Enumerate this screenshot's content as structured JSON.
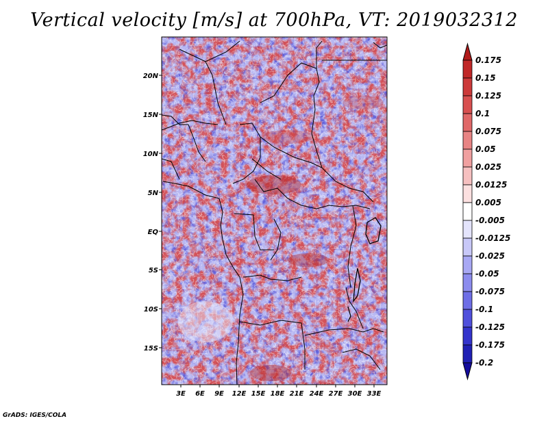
{
  "title": "Vertical velocity [m/s] at 700hPa, VT: 2019032312",
  "credit": "GrADS: IGES/COLA",
  "map": {
    "lat_labels": [
      "20N",
      "15N",
      "10N",
      "5N",
      "EQ",
      "5S",
      "10S",
      "15S"
    ],
    "lon_labels": [
      "3E",
      "6E",
      "9E",
      "12E",
      "15E",
      "18E",
      "21E",
      "24E",
      "27E",
      "30E",
      "33E"
    ]
  },
  "colorbar": {
    "labels": [
      "0.175",
      "0.15",
      "0.125",
      "0.1",
      "0.075",
      "0.05",
      "0.025",
      "0.0125",
      "0.005",
      "-0.005",
      "-0.0125",
      "-0.025",
      "-0.05",
      "-0.075",
      "-0.1",
      "-0.125",
      "-0.175",
      "-0.2"
    ],
    "colors": [
      "#b01a1a",
      "#c02828",
      "#cc3a3a",
      "#d85050",
      "#e06868",
      "#e88484",
      "#f0a0a0",
      "#f6c0c0",
      "#fce0e0",
      "#ffffff",
      "#e4e4fc",
      "#c8c8f8",
      "#a8a8f4",
      "#8c8cee",
      "#6e6ee6",
      "#5050dc",
      "#3434cc",
      "#2020b4",
      "#140c9c"
    ]
  }
}
